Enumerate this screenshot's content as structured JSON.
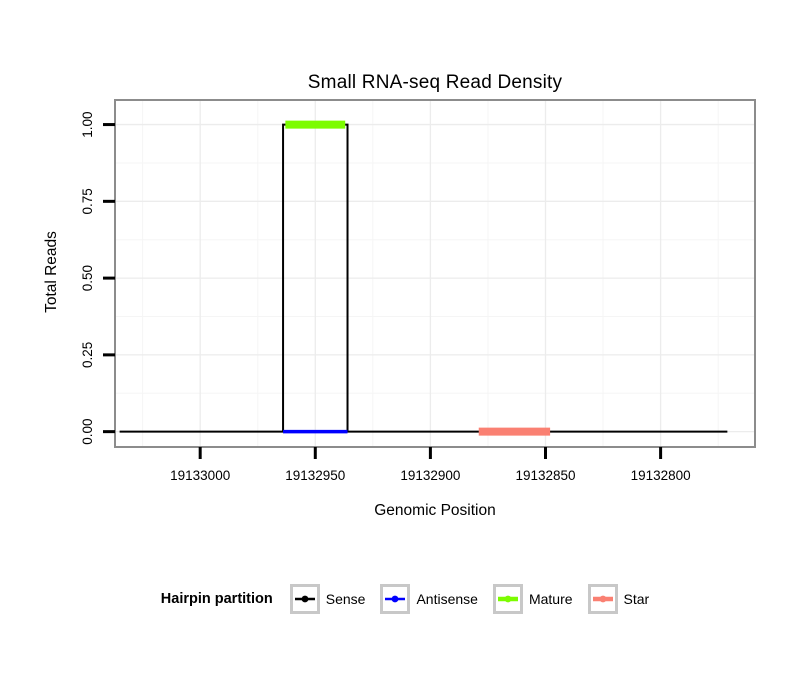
{
  "chart_data": {
    "type": "line",
    "title": "Small RNA-seq Read Density",
    "xlabel": "Genomic Position",
    "ylabel": "Total Reads",
    "grid": "on",
    "x_axis": {
      "reversed": true,
      "range": [
        19133037,
        19132759
      ],
      "ticks": [
        {
          "value": 19133000,
          "label": "19133000"
        },
        {
          "value": 19132950,
          "label": "19132950"
        },
        {
          "value": 19132900,
          "label": "19132900"
        },
        {
          "value": 19132850,
          "label": "19132850"
        },
        {
          "value": 19132800,
          "label": "19132800"
        }
      ]
    },
    "y_axis": {
      "range": [
        -0.05,
        1.08
      ],
      "ticks": [
        {
          "value": 0,
          "label": "0.00"
        },
        {
          "value": 0.25,
          "label": "0.25"
        },
        {
          "value": 0.5,
          "label": "0.50"
        },
        {
          "value": 0.75,
          "label": "0.75"
        },
        {
          "value": 1,
          "label": "1.00"
        }
      ]
    },
    "series": [
      {
        "name": "Sense",
        "style": "step-line",
        "color": "#000000",
        "width": 2,
        "points": [
          [
            19133035,
            0
          ],
          [
            19132964,
            0
          ],
          [
            19132964,
            1
          ],
          [
            19132936,
            1
          ],
          [
            19132936,
            0
          ],
          [
            19132771,
            0
          ]
        ]
      },
      {
        "name": "Antisense",
        "style": "segment",
        "color": "#0000FF",
        "width": 3.5,
        "y": 0,
        "x1": 19132964,
        "x2": 19132936
      },
      {
        "name": "Mature",
        "style": "segment",
        "color": "#7CFC00",
        "width": 8,
        "y": 1,
        "x1": 19132963,
        "x2": 19132937
      },
      {
        "name": "Star",
        "style": "segment",
        "color": "#FA8072",
        "width": 8,
        "y": 0,
        "x1": 19132879,
        "x2": 19132848
      }
    ],
    "legend": {
      "title": "Hairpin partition",
      "position": "bottom",
      "entries": [
        {
          "label": "Sense",
          "color": "#000000",
          "line_width": 2.5
        },
        {
          "label": "Antisense",
          "color": "#0000FF",
          "line_width": 2.5
        },
        {
          "label": "Mature",
          "color": "#7CFC00",
          "line_width": 4.5
        },
        {
          "label": "Star",
          "color": "#FA8072",
          "line_width": 4.5
        }
      ]
    },
    "colors": {
      "panel_border": "#8c8c8c",
      "grid_major": "#ececec",
      "grid_minor": "#f5f5f5",
      "tick": "#000000"
    }
  }
}
